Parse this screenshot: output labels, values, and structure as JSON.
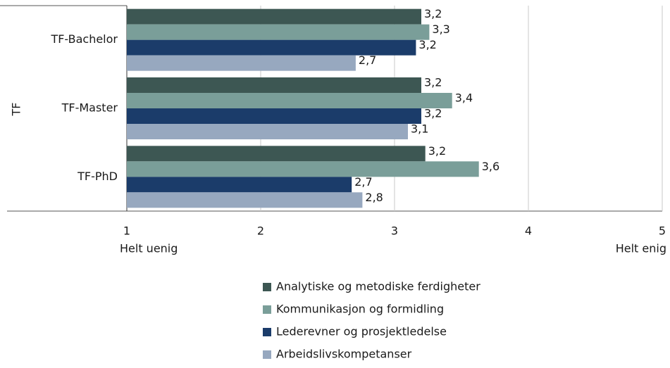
{
  "chart_data": {
    "type": "bar",
    "orientation": "horizontal",
    "y_group_label": "TF",
    "categories": [
      "TF-Bachelor",
      "TF-Master",
      "TF-PhD"
    ],
    "series": [
      {
        "name": "Analytiske og metodiske ferdigheter",
        "color": "#3d5753",
        "values": [
          3.2,
          3.2,
          3.23
        ],
        "value_labels": [
          "3,2",
          "3,2",
          "3,2"
        ]
      },
      {
        "name": "Kommunikasjon og formidling",
        "color": "#7a9e99",
        "values": [
          3.26,
          3.43,
          3.63
        ],
        "value_labels": [
          "3,3",
          "3,4",
          "3,6"
        ]
      },
      {
        "name": "Lederevner og prosjektledelse",
        "color": "#1b3c6a",
        "values": [
          3.16,
          3.2,
          2.68
        ],
        "value_labels": [
          "3,2",
          "3,2",
          "2,7"
        ]
      },
      {
        "name": "Arbeidslivskompetanser",
        "color": "#97a8bf",
        "values": [
          2.71,
          3.1,
          2.76
        ],
        "value_labels": [
          "2,7",
          "3,1",
          "2,8"
        ]
      }
    ],
    "xlim": [
      1,
      5
    ],
    "xticks": [
      1,
      2,
      3,
      4,
      5
    ],
    "x_anchor_labels": [
      "Helt uenig",
      "Helt enig"
    ],
    "grid": true,
    "legend": "bottom"
  }
}
